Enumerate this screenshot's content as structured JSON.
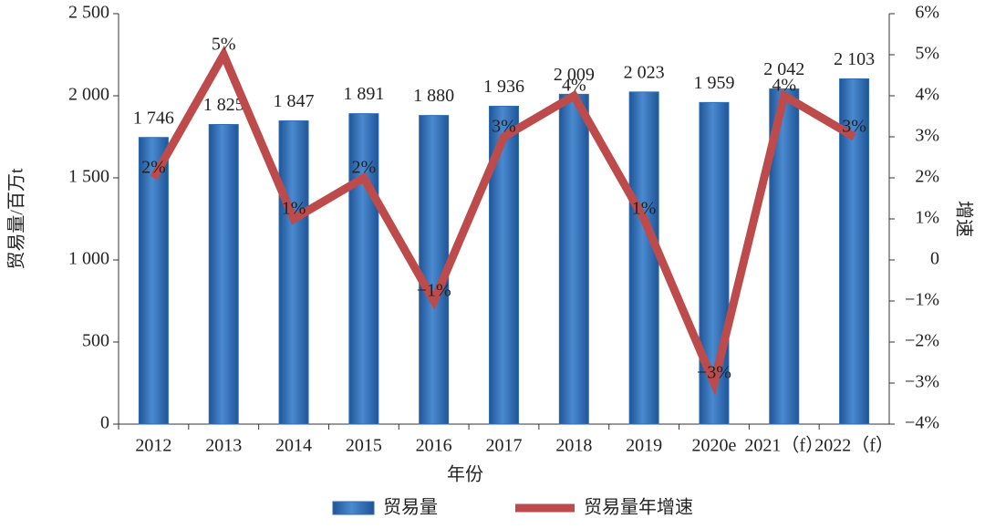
{
  "chart_data": {
    "type": "bar",
    "x_label": "年份",
    "y_label": "贸易量/百万t",
    "y2_label": "增速",
    "categories": [
      "2012",
      "2013",
      "2014",
      "2015",
      "2016",
      "2017",
      "2018",
      "2019",
      "2020e",
      "2021（f）",
      "2022（f）"
    ],
    "series": [
      {
        "name": "贸易量",
        "type": "bar",
        "color": "#2f6db5",
        "values": [
          1746,
          1825,
          1847,
          1891,
          1880,
          1936,
          2009,
          2023,
          1959,
          2042,
          2103
        ],
        "value_labels": [
          "1 746",
          "1 825",
          "1 847",
          "1 891",
          "1 880",
          "1 936",
          "2 009",
          "2 023",
          "1 959",
          "2 042",
          "2 103"
        ]
      },
      {
        "name": "贸易量年增速",
        "type": "line",
        "axis": "y2",
        "color": "#bd4b4b",
        "values": [
          2,
          5,
          1,
          2,
          -1,
          3,
          4,
          1,
          -3,
          4,
          3
        ],
        "value_labels": [
          "2%",
          "5%",
          "1%",
          "2%",
          "−1%",
          "3%",
          "4%",
          "1%",
          "−3%",
          "4%",
          "3%"
        ]
      }
    ],
    "ylim": [
      0,
      2500
    ],
    "yticks": [
      0,
      500,
      {
        "value": 1000,
        "label": "1 000"
      },
      {
        "value": 1500,
        "label": "1 500"
      },
      {
        "value": 2000,
        "label": "2 000"
      },
      {
        "value": 2500,
        "label": "2 500"
      }
    ],
    "y2lim": [
      -4,
      6
    ],
    "y2ticks": [
      {
        "value": -4,
        "label": "−4%"
      },
      {
        "value": -3,
        "label": "−3%"
      },
      {
        "value": -2,
        "label": "−2%"
      },
      {
        "value": -1,
        "label": "−1%"
      },
      0,
      {
        "value": 1,
        "label": "1%"
      },
      {
        "value": 2,
        "label": "2%"
      },
      {
        "value": 3,
        "label": "3%"
      },
      {
        "value": 4,
        "label": "4%"
      },
      {
        "value": 5,
        "label": "5%"
      },
      {
        "value": 6,
        "label": "6%"
      }
    ],
    "legend": "bottom"
  }
}
